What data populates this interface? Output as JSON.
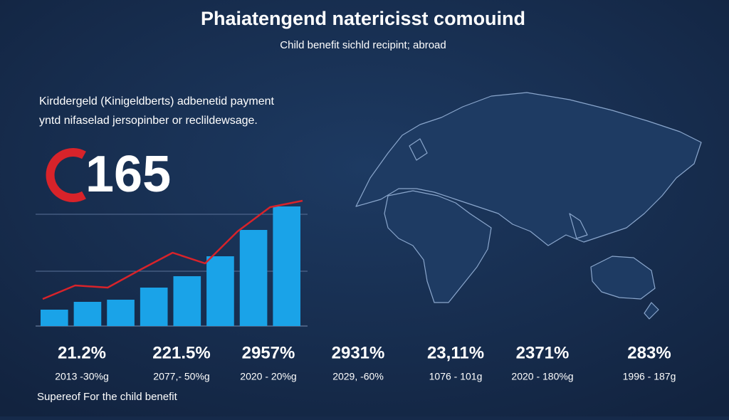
{
  "header": {
    "title": "Phaiatengend natericisst comouind",
    "subtitle": "Child benefit sichld recipint; abroad"
  },
  "intro": [
    "Kirddergeld (Kinigeldberts) adbenetid payment",
    "yntd nifaselad jersopinber or reclildewsage."
  ],
  "big_number": "165",
  "chart_data": {
    "type": "bar",
    "values": [
      23,
      34,
      37,
      54,
      70,
      98,
      135,
      168
    ],
    "color": "#1aa3e8",
    "line_values": [
      38,
      57,
      54,
      79,
      103,
      88,
      133,
      167,
      176
    ],
    "line_color": "#d8232a",
    "ylim": [
      0,
      180
    ]
  },
  "stats": [
    {
      "value": "21.2%",
      "label": "2013 -30%g"
    },
    {
      "value": "221.5%",
      "label": "2077,- 50%g"
    },
    {
      "value": "2957%",
      "label": "2020 - 20%g"
    },
    {
      "value": "2931%",
      "label": "2029, -60%"
    },
    {
      "value": "23,11%",
      "label": "1076 - 101g"
    },
    {
      "value": "2371%",
      "label": "2020 - 180%g"
    },
    {
      "value": "283%",
      "label": "1996 - 187g"
    }
  ],
  "footer": "Supereof For the child benefit"
}
